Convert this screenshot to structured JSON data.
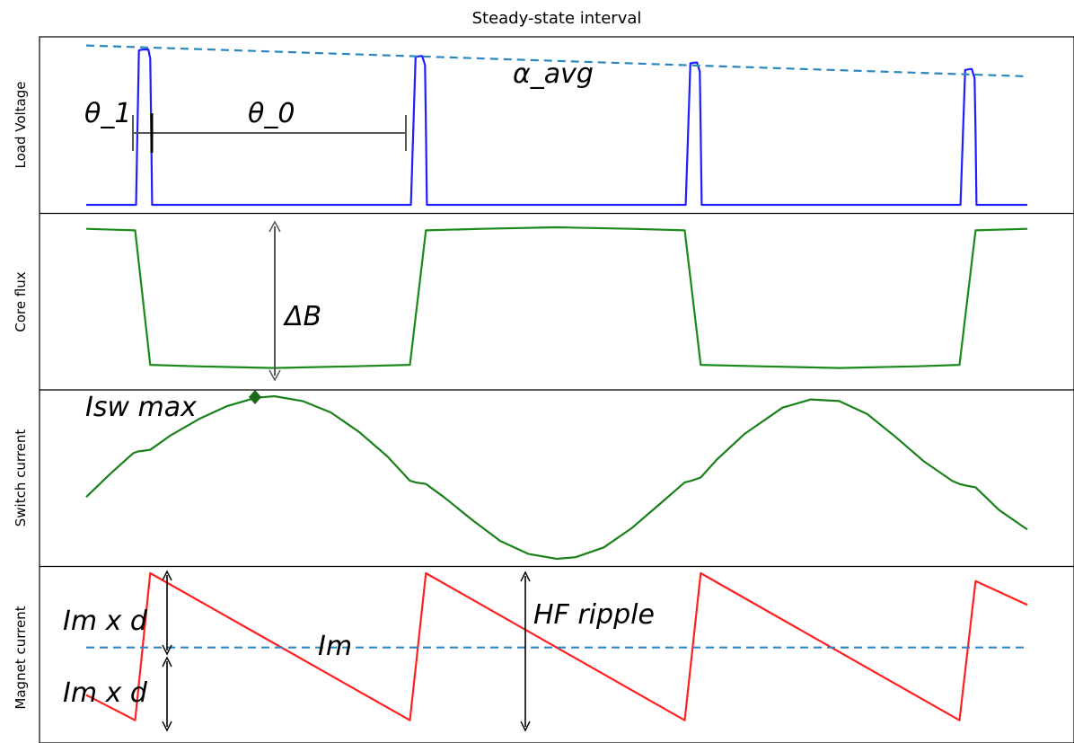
{
  "chart_data": {
    "type": "line",
    "title": "Steady-state interval",
    "colors": {
      "voltage": "#1f1fff",
      "flux": "#1a8a1a",
      "switch": "#1a801a",
      "magnet": "#ff2020",
      "dashed": "#2e86c1",
      "annotation": "#000000"
    },
    "panels": [
      {
        "ylabel": "Load Voltage",
        "series": [
          {
            "style": "solid",
            "color": "voltage",
            "x": [
              0,
              0.053,
              0.056,
              0.06,
              0.066,
              0.068,
              0.069,
              0.07,
              0.341,
              0.345,
              0.35,
              0.355,
              0.357,
              0.36,
              0.361,
              0.362,
              0.633,
              0.637,
              0.642,
              0.647,
              0.649,
              0.652,
              0.653,
              0.654,
              0.925,
              0.929,
              0.934,
              0.939,
              0.941,
              0.944,
              0.945,
              0.946,
              1.0
            ],
            "y": [
              0,
              0,
              0.95,
              0.955,
              0.955,
              0.9,
              0.5,
              0,
              0,
              0,
              0.91,
              0.915,
              0.915,
              0.86,
              0.48,
              0,
              0,
              0,
              0.87,
              0.875,
              0.875,
              0.82,
              0.45,
              0,
              0,
              0,
              0.83,
              0.835,
              0.835,
              0.78,
              0.43,
              0,
              0
            ]
          },
          {
            "style": "dashed",
            "color": "dashed",
            "x": [
              0,
              1.0
            ],
            "y": [
              0.98,
              0.79
            ]
          }
        ],
        "annotations": [
          {
            "text": "θ_1"
          },
          {
            "text": "θ_0"
          },
          {
            "text": "α_avg"
          }
        ]
      },
      {
        "ylabel": "Core flux",
        "series": [
          {
            "style": "solid",
            "color": "flux",
            "x": [
              0,
              0.052,
              0.068,
              0.12,
              0.2,
              0.28,
              0.344,
              0.361,
              0.42,
              0.5,
              0.58,
              0.636,
              0.653,
              0.72,
              0.8,
              0.88,
              0.928,
              0.945,
              1.0
            ],
            "y": [
              0.95,
              0.94,
              0.08,
              0.07,
              0.06,
              0.07,
              0.08,
              0.94,
              0.95,
              0.96,
              0.95,
              0.94,
              0.08,
              0.07,
              0.06,
              0.07,
              0.08,
              0.94,
              0.95
            ]
          }
        ],
        "annotations": [
          {
            "text": "ΔB"
          }
        ]
      },
      {
        "ylabel": "Switch current",
        "series": [
          {
            "style": "solid",
            "color": "switch",
            "x": [
              0,
              0.025,
              0.05,
              0.055,
              0.068,
              0.09,
              0.12,
              0.15,
              0.18,
              0.2,
              0.23,
              0.26,
              0.29,
              0.32,
              0.344,
              0.35,
              0.361,
              0.38,
              0.41,
              0.44,
              0.47,
              0.5,
              0.52,
              0.55,
              0.58,
              0.61,
              0.636,
              0.643,
              0.653,
              0.67,
              0.7,
              0.74,
              0.77,
              0.8,
              0.83,
              0.86,
              0.89,
              0.92,
              0.928,
              0.935,
              0.945,
              0.97,
              1.0
            ],
            "y": [
              0.38,
              0.52,
              0.65,
              0.66,
              0.67,
              0.76,
              0.86,
              0.94,
              0.99,
              1.0,
              0.97,
              0.9,
              0.78,
              0.63,
              0.48,
              0.47,
              0.46,
              0.38,
              0.24,
              0.11,
              0.03,
              0.0,
              0.01,
              0.07,
              0.19,
              0.34,
              0.47,
              0.48,
              0.5,
              0.61,
              0.77,
              0.93,
              0.98,
              0.97,
              0.89,
              0.75,
              0.6,
              0.48,
              0.46,
              0.45,
              0.44,
              0.3,
              0.18
            ]
          }
        ],
        "annotations": [
          {
            "text": "Isw max"
          }
        ]
      },
      {
        "ylabel": "Magnet current",
        "series": [
          {
            "style": "solid",
            "color": "magnet",
            "x": [
              0,
              0.052,
              0.068,
              0.344,
              0.361,
              0.636,
              0.653,
              0.928,
              0.945,
              1.0
            ],
            "y": [
              0.23,
              0.07,
              1.0,
              0.07,
              1.0,
              0.07,
              1.0,
              0.07,
              0.95,
              0.8
            ]
          },
          {
            "style": "dashed",
            "color": "dashed",
            "x": [
              0,
              1.0
            ],
            "y": [
              0.53,
              0.53
            ]
          }
        ],
        "annotations": [
          {
            "text": "Im x d"
          },
          {
            "text": "Im x d"
          },
          {
            "text": "Im"
          },
          {
            "text": "HF ripple"
          }
        ]
      }
    ]
  }
}
